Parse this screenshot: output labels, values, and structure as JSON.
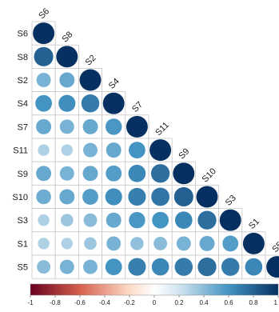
{
  "chart_data": {
    "type": "heatmap",
    "style": "correlation-circles-lower-triangle",
    "title": "",
    "variables": [
      "S6",
      "S8",
      "S2",
      "S4",
      "S7",
      "S11",
      "S9",
      "S10",
      "S3",
      "S1",
      "S5"
    ],
    "matrix": [
      [
        1.0
      ],
      [
        0.8,
        1.0
      ],
      [
        0.45,
        0.5,
        1.0
      ],
      [
        0.6,
        0.62,
        0.7,
        1.0
      ],
      [
        0.5,
        0.45,
        0.5,
        0.58,
        1.0
      ],
      [
        0.3,
        0.3,
        0.45,
        0.5,
        0.6,
        1.0
      ],
      [
        0.5,
        0.45,
        0.5,
        0.55,
        0.65,
        0.75,
        1.0
      ],
      [
        0.48,
        0.5,
        0.55,
        0.62,
        0.68,
        0.72,
        0.8,
        1.0
      ],
      [
        0.3,
        0.35,
        0.4,
        0.5,
        0.58,
        0.6,
        0.65,
        0.75,
        1.0
      ],
      [
        0.3,
        0.3,
        0.35,
        0.45,
        0.38,
        0.4,
        0.45,
        0.5,
        0.55,
        1.0
      ],
      [
        0.4,
        0.45,
        0.45,
        0.6,
        0.68,
        0.65,
        0.7,
        0.75,
        0.7,
        0.65,
        1.0
      ]
    ],
    "colorbar": {
      "range": [
        -1,
        1
      ],
      "ticks": [
        "-1",
        "-0.8",
        "-0.6",
        "-0.4",
        "-0.2",
        "0",
        "0.2",
        "0.4",
        "0.6",
        "0.8",
        "1"
      ],
      "colors": {
        "neg_end": "#67001F",
        "neg_mid": "#D6604D",
        "neg_light": "#FDDBC7",
        "zero": "#FFFFFF",
        "pos_light": "#D1E5F0",
        "pos_mid": "#4393C3",
        "pos_end": "#053061"
      }
    },
    "grid": true,
    "legend_position": "bottom"
  }
}
